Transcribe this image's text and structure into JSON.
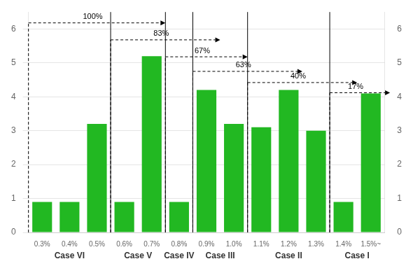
{
  "chart_data": {
    "type": "bar",
    "categories": [
      "0.3%",
      "0.4%",
      "0.5%",
      "0.6%",
      "0.7%",
      "0.8%",
      "0.9%",
      "1.0%",
      "1.1%",
      "1.2%",
      "1.3%",
      "1.4%",
      "1.5%~"
    ],
    "values": [
      0.9,
      0.9,
      3.2,
      0.9,
      5.2,
      0.9,
      4.2,
      3.2,
      3.1,
      4.2,
      3.0,
      0.9,
      4.1
    ],
    "color": "#22b822",
    "ylim": [
      0,
      6.5
    ],
    "yticks": [
      0,
      1,
      2,
      3,
      4,
      5,
      6
    ],
    "y2lim": [
      0,
      6.5
    ],
    "y2ticks": [
      0,
      1,
      2,
      3,
      4,
      5,
      6
    ],
    "grid": true,
    "case_groups": [
      {
        "label": "Case VI",
        "categories": [
          "0.3%",
          "0.4%",
          "0.5%"
        ]
      },
      {
        "label": "Case V",
        "categories": [
          "0.6%",
          "0.7%"
        ]
      },
      {
        "label": "Case IV",
        "categories": [
          "0.8%"
        ]
      },
      {
        "label": "Case III",
        "categories": [
          "0.9%",
          "1.0%"
        ]
      },
      {
        "label": "Case II",
        "categories": [
          "1.1%",
          "1.2%",
          "1.3%"
        ]
      },
      {
        "label": "Case I",
        "categories": [
          "1.4%",
          "1.5%~"
        ]
      }
    ],
    "arrows": [
      {
        "text": "100%",
        "y": 6.18,
        "x_from": -0.5,
        "x_to": 4.5
      },
      {
        "text": "83%",
        "y": 5.68,
        "x_from": 2.5,
        "x_to": 6.5
      },
      {
        "text": "67%",
        "y": 5.18,
        "x_from": 4.5,
        "x_to": 7.5
      },
      {
        "text": "63%",
        "y": 4.75,
        "x_from": 5.5,
        "x_to": 9.5
      },
      {
        "text": "40%",
        "y": 4.42,
        "x_from": 7.5,
        "x_to": 11.5
      },
      {
        "text": "17%",
        "y": 4.12,
        "x_from": 10.5,
        "x_to": 12.7
      }
    ]
  }
}
